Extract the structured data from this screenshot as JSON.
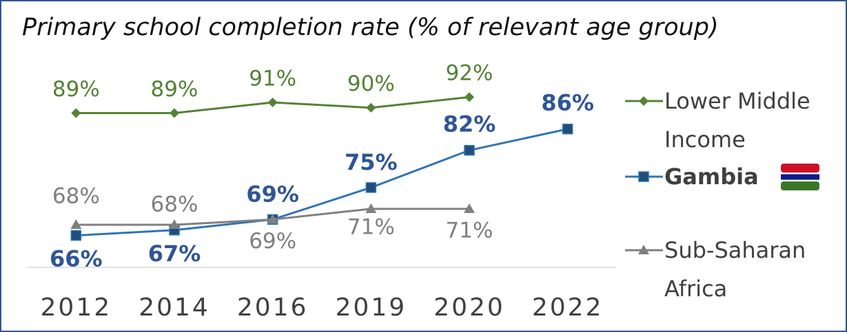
{
  "chart_data": {
    "type": "line",
    "title": "Primary school completion rate (% of relevant age group)",
    "categories": [
      "2012",
      "2014",
      "2016",
      "2019",
      "2020",
      "2022"
    ],
    "series": [
      {
        "name": "Lower Middle Income",
        "color": "#548235",
        "values": [
          89,
          89,
          91,
          90,
          92,
          null
        ],
        "value_labels": [
          "89%",
          "89%",
          "91%",
          "90%",
          "92%",
          null
        ]
      },
      {
        "name": "Gambia",
        "color": "#2e75b6",
        "values": [
          66,
          67,
          69,
          75,
          82,
          86
        ],
        "value_labels": [
          "66%",
          "67%",
          "69%",
          "75%",
          "82%",
          "86%"
        ]
      },
      {
        "name": "Sub-Saharan Africa",
        "color": "#808080",
        "values": [
          68,
          68,
          69,
          71,
          71,
          null
        ],
        "value_labels": [
          "68%",
          "68%",
          "69%",
          "71%",
          "71%",
          null
        ]
      }
    ],
    "ylim": [
      60,
      95
    ]
  }
}
